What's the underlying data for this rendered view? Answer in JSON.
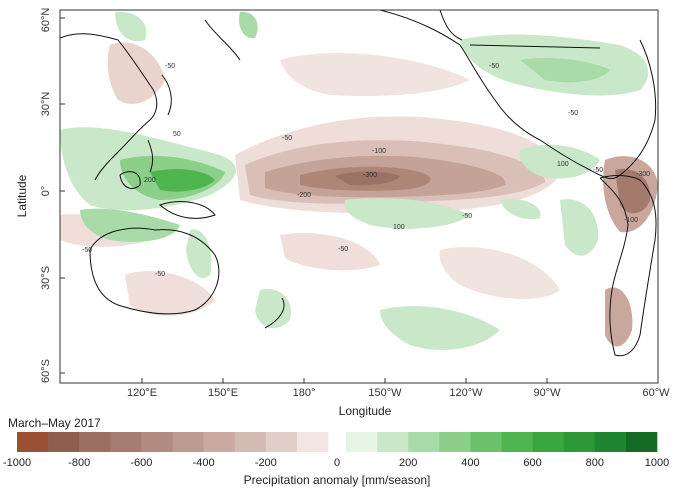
{
  "map": {
    "xlabel": "Longitude",
    "ylabel": "Latitude",
    "lon_ticks": [
      "120°E",
      "150°E",
      "180°",
      "150°W",
      "120°W",
      "90°W",
      "60°W"
    ],
    "lat_ticks": [
      "60°N",
      "30°N",
      "0°",
      "30°S",
      "60°S"
    ],
    "contour_labels": [
      "-50",
      "50",
      "200",
      "-50",
      "-50",
      "-50",
      "-50",
      "-100",
      "-300",
      "-200",
      "-50",
      "100",
      "-50",
      "-50",
      "100",
      "-50",
      "-300",
      "-100"
    ]
  },
  "colorbar": {
    "title": "March–May 2017",
    "label": "Precipitation anomaly [mm/season]",
    "ticks": [
      "-1000",
      "-800",
      "-600",
      "-400",
      "-200",
      "0",
      "200",
      "400",
      "600",
      "800",
      "1000"
    ],
    "colors": [
      "#9a5132",
      "#8f5e4e",
      "#9c6f61",
      "#a67c70",
      "#b28b80",
      "#bd9a90",
      "#c8aaa2",
      "#d3bbb4",
      "#e2cec8",
      "#f3e6e2",
      "#e6f4e6",
      "#c9e8c9",
      "#a8dba8",
      "#8bcf88",
      "#6cc26a",
      "#4fb54e",
      "#39a740",
      "#2c9838",
      "#1f8530",
      "#156a26"
    ]
  }
}
